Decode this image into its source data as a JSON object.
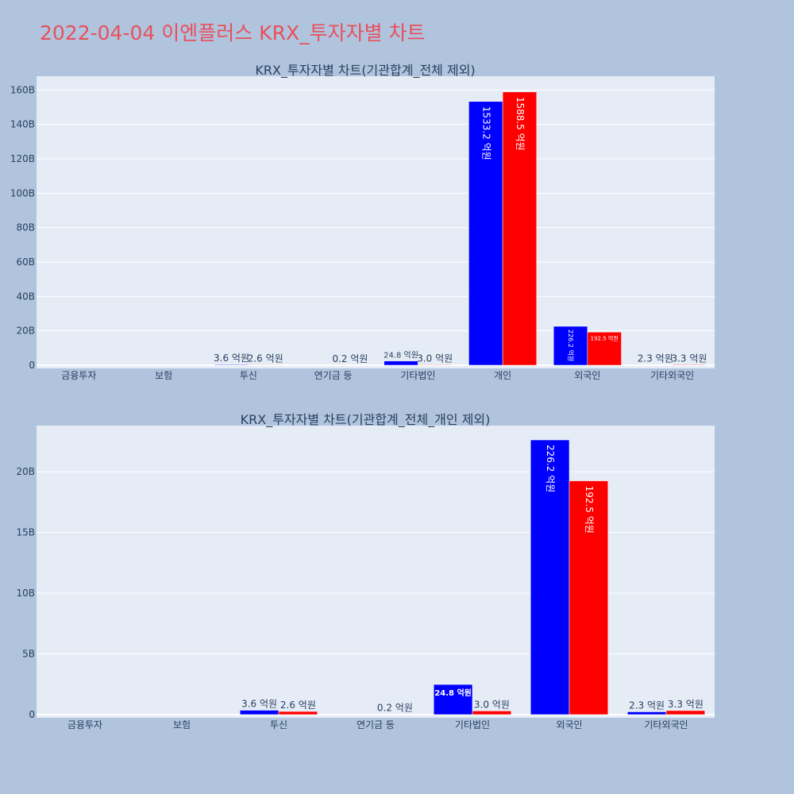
{
  "page": {
    "title": "2022-04-04 이엔플러스 KRX_투자자별 차트",
    "background": "#b0c4de",
    "title_color": "#e8505b"
  },
  "chart_data": [
    {
      "type": "bar",
      "title": "KRX_투자자별 차트(기관합계_전체 제외)",
      "categories": [
        "금융투자",
        "보험",
        "투신",
        "연기금 등",
        "기타법인",
        "개인",
        "외국인",
        "기타외국인"
      ],
      "series": [
        {
          "color": "#0000ff",
          "values": [
            0,
            0,
            360000000,
            0,
            2480000000,
            153320000000,
            22620000000,
            230000000
          ],
          "labels": [
            "",
            "",
            "3.6 억원",
            "",
            "24.8 억원",
            "1533.2 억원",
            "226.2 억원",
            "2.3 억원"
          ]
        },
        {
          "color": "#ff0000",
          "values": [
            0,
            0,
            260000000,
            20000000,
            300000000,
            158850000000,
            19250000000,
            330000000
          ],
          "labels": [
            "",
            "",
            "2.6 억원",
            "0.2 억원",
            "3.0 억원",
            "1588.5 억원",
            "192.5 억원",
            "3.3 억원"
          ]
        }
      ],
      "yticks": [
        "0",
        "20B",
        "40B",
        "60B",
        "80B",
        "100B",
        "120B",
        "140B",
        "160B"
      ],
      "ytick_values": [
        0,
        20000000000,
        40000000000,
        60000000000,
        80000000000,
        100000000000,
        120000000000,
        140000000000,
        160000000000
      ],
      "ylim": [
        0,
        168000000000
      ],
      "grid": true,
      "plot_bg": "#e5ecf6"
    },
    {
      "type": "bar",
      "title": "KRX_투자자별 차트(기관합계_전체_개인 제외)",
      "categories": [
        "금융투자",
        "보험",
        "투신",
        "연기금 등",
        "기타법인",
        "외국인",
        "기타외국인"
      ],
      "series": [
        {
          "color": "#0000ff",
          "values": [
            0,
            0,
            360000000,
            0,
            2480000000,
            22620000000,
            230000000
          ],
          "labels": [
            "",
            "",
            "3.6 억원",
            "",
            "24.8 억원",
            "226.2 억원",
            "2.3 억원"
          ]
        },
        {
          "color": "#ff0000",
          "values": [
            0,
            0,
            260000000,
            20000000,
            300000000,
            19250000000,
            330000000
          ],
          "labels": [
            "",
            "",
            "2.6 억원",
            "0.2 억원",
            "3.0 억원",
            "192.5 억원",
            "3.3 억원"
          ]
        }
      ],
      "yticks": [
        "0",
        "5B",
        "10B",
        "15B",
        "20B"
      ],
      "ytick_values": [
        0,
        5000000000,
        10000000000,
        15000000000,
        20000000000
      ],
      "ylim": [
        0,
        23800000000
      ],
      "grid": true,
      "plot_bg": "#e5ecf6"
    }
  ]
}
